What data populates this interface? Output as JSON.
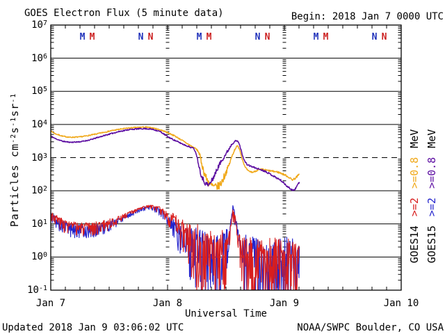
{
  "header": {
    "title": "GOES Electron Flux (5 minute data)",
    "begin": "Begin: 2018 Jan 7 0000 UTC"
  },
  "footer": {
    "updated": "Updated 2018 Jan  9 03:06:02 UTC",
    "credit": "NOAA/SWPC Boulder, CO USA"
  },
  "chart_data": {
    "type": "line",
    "title": "GOES Electron Flux (5 minute data)",
    "subtitle": "Begin: 2018 Jan 7 0000 UTC",
    "x_axis": {
      "label": "Universal Time",
      "range_hours": [
        0,
        72
      ],
      "tick_every_hours": 3,
      "major_every_hours": 24,
      "day_labels": [
        {
          "t": 0,
          "label": "Jan 7"
        },
        {
          "t": 24,
          "label": "Jan 8"
        },
        {
          "t": 48,
          "label": "Jan 9"
        },
        {
          "t": 72,
          "label": "Jan 10"
        }
      ]
    },
    "y_axis": {
      "label_parts": [
        {
          "text": "Particles cm"
        },
        {
          "sup": "-2"
        },
        {
          "text": "s"
        },
        {
          "sup": "-1"
        },
        {
          "text": "sr"
        },
        {
          "sup": "-1"
        }
      ],
      "log_min": -1,
      "log_max": 7,
      "tick_exponents": [
        7,
        6,
        5,
        4,
        3,
        2,
        1,
        0,
        -1
      ]
    },
    "threshold": {
      "value": 1000,
      "style": "dashed"
    },
    "day_boundary_lines_hours": [
      24,
      48
    ],
    "satellite_markers": {
      "midnight_letter": "M",
      "noon_letter": "N",
      "midnight_times_utc_hours": [
        6.5,
        8.5
      ],
      "noon_times_utc_hours": [
        18.5,
        20.5
      ],
      "letter_colors": [
        "#2233bb",
        "#cc2222"
      ],
      "repeat_days": 3,
      "baseline_y": 57
    },
    "series": [
      {
        "name": "GOES14 >=0.8 MeV",
        "satellite": "GOES14",
        "energy": ">=0.8 MeV",
        "color": "#f0a818",
        "width": 1.5,
        "noise_asym": [
          1,
          1
        ],
        "anchors": [
          [
            0,
            6300
          ],
          [
            1,
            5200
          ],
          [
            2.5,
            4400
          ],
          [
            4,
            4100
          ],
          [
            6,
            4200
          ],
          [
            8,
            4700
          ],
          [
            10,
            5400
          ],
          [
            12,
            6300
          ],
          [
            14,
            7100
          ],
          [
            16,
            7800
          ],
          [
            18,
            8200
          ],
          [
            19.5,
            8300
          ],
          [
            21,
            7800
          ],
          [
            22.5,
            6900
          ],
          [
            24,
            5700
          ],
          [
            25.5,
            4500
          ],
          [
            27,
            3300
          ],
          [
            28.5,
            2400
          ],
          [
            29.8,
            1850
          ],
          [
            30.4,
            1500
          ],
          [
            30.9,
            800
          ],
          [
            31.4,
            400
          ],
          [
            32,
            230
          ],
          [
            32.8,
            150
          ],
          [
            33.6,
            130
          ],
          [
            34.4,
            135
          ],
          [
            35,
            170
          ],
          [
            35.6,
            260
          ],
          [
            36.2,
            420
          ],
          [
            36.8,
            700
          ],
          [
            37.4,
            1300
          ],
          [
            38,
            2000
          ],
          [
            38.4,
            2250
          ],
          [
            38.8,
            1800
          ],
          [
            39.3,
            950
          ],
          [
            39.9,
            520
          ],
          [
            40.6,
            390
          ],
          [
            41.5,
            360
          ],
          [
            42.5,
            420
          ],
          [
            43.5,
            440
          ],
          [
            44.5,
            410
          ],
          [
            45.5,
            390
          ],
          [
            46.5,
            370
          ],
          [
            47.5,
            330
          ],
          [
            48.3,
            290
          ],
          [
            49,
            250
          ],
          [
            49.6,
            215
          ],
          [
            50.2,
            235
          ],
          [
            50.7,
            280
          ],
          [
            51.1,
            310
          ]
        ],
        "noise": [
          [
            0,
            0.015
          ],
          [
            30,
            0.02
          ],
          [
            31,
            0.1
          ],
          [
            33,
            0.12
          ],
          [
            35.5,
            0.12
          ],
          [
            36.5,
            0.06
          ],
          [
            38.5,
            0.02
          ],
          [
            51.1,
            0.03
          ]
        ]
      },
      {
        "name": "GOES15 >=0.8 MeV",
        "satellite": "GOES15",
        "energy": ">=0.8 MeV",
        "color": "#5a0aa0",
        "width": 1.5,
        "noise_asym": [
          1,
          1
        ],
        "anchors": [
          [
            0,
            4500
          ],
          [
            1,
            3700
          ],
          [
            2.5,
            3100
          ],
          [
            4,
            2900
          ],
          [
            6,
            3000
          ],
          [
            8,
            3400
          ],
          [
            10,
            4200
          ],
          [
            12,
            5100
          ],
          [
            14,
            6100
          ],
          [
            16,
            7000
          ],
          [
            18,
            7400
          ],
          [
            19.5,
            7500
          ],
          [
            21,
            7100
          ],
          [
            22.5,
            6100
          ],
          [
            24,
            4300
          ],
          [
            25.5,
            3300
          ],
          [
            27,
            2600
          ],
          [
            28.5,
            2100
          ],
          [
            29.4,
            1900
          ],
          [
            29.9,
            1300
          ],
          [
            30.4,
            600
          ],
          [
            30.9,
            300
          ],
          [
            31.6,
            180
          ],
          [
            32.4,
            145
          ],
          [
            33,
            190
          ],
          [
            33.8,
            330
          ],
          [
            34.6,
            600
          ],
          [
            35.4,
            950
          ],
          [
            36,
            1300
          ],
          [
            36.6,
            1800
          ],
          [
            37.2,
            2600
          ],
          [
            37.8,
            3100
          ],
          [
            38.3,
            3200
          ],
          [
            38.7,
            2700
          ],
          [
            39.2,
            1500
          ],
          [
            39.7,
            850
          ],
          [
            40.3,
            620
          ],
          [
            41.2,
            540
          ],
          [
            42.2,
            480
          ],
          [
            43.2,
            430
          ],
          [
            44.2,
            380
          ],
          [
            45.2,
            310
          ],
          [
            46.2,
            255
          ],
          [
            47.2,
            210
          ],
          [
            48,
            165
          ],
          [
            48.8,
            128
          ],
          [
            49.5,
            108
          ],
          [
            50.1,
            104
          ],
          [
            50.6,
            140
          ],
          [
            51.1,
            190
          ]
        ],
        "noise": [
          [
            0,
            0.015
          ],
          [
            30,
            0.02
          ],
          [
            31,
            0.07
          ],
          [
            33,
            0.08
          ],
          [
            35.5,
            0.06
          ],
          [
            38.5,
            0.02
          ],
          [
            51.1,
            0.03
          ]
        ]
      },
      {
        "name": "GOES15 >=2 MeV",
        "satellite": "GOES15",
        "energy": ">=2 MeV",
        "color": "#2323cc",
        "width": 1.1,
        "noise_asym": [
          0.7,
          1.9
        ],
        "anchors": [
          [
            0,
            19
          ],
          [
            0.8,
            15
          ],
          [
            1.8,
            11
          ],
          [
            3,
            9
          ],
          [
            4.5,
            7.8
          ],
          [
            6,
            7.3
          ],
          [
            7.5,
            7
          ],
          [
            9,
            7.6
          ],
          [
            10.5,
            8.6
          ],
          [
            12,
            10.2
          ],
          [
            13.5,
            12.5
          ],
          [
            15,
            16
          ],
          [
            16.5,
            21
          ],
          [
            18,
            26
          ],
          [
            19.3,
            31
          ],
          [
            20.3,
            33
          ],
          [
            21.3,
            31
          ],
          [
            22.3,
            26
          ],
          [
            23.3,
            20
          ],
          [
            24.3,
            14
          ],
          [
            25.3,
            9.5
          ],
          [
            26.3,
            6.5
          ],
          [
            27.3,
            4.6
          ],
          [
            28.3,
            3.4
          ],
          [
            29.3,
            2.6
          ],
          [
            30.3,
            2.1
          ],
          [
            31.3,
            1.8
          ],
          [
            32.3,
            1.5
          ],
          [
            33.3,
            1.4
          ],
          [
            34.3,
            1.4
          ],
          [
            35.3,
            1.6
          ],
          [
            36.1,
            2.2
          ],
          [
            36.7,
            5
          ],
          [
            37.1,
            16
          ],
          [
            37.4,
            32
          ],
          [
            37.8,
            20
          ],
          [
            38.1,
            11
          ],
          [
            38.5,
            5
          ],
          [
            39,
            2.4
          ],
          [
            39.6,
            1.4
          ],
          [
            40.5,
            1.1
          ],
          [
            42,
            1
          ],
          [
            44,
            0.95
          ],
          [
            46,
            1
          ],
          [
            48,
            0.95
          ],
          [
            50,
            1
          ],
          [
            51.1,
            0.95
          ]
        ],
        "noise": [
          [
            0,
            0.12
          ],
          [
            3,
            0.16
          ],
          [
            8,
            0.17
          ],
          [
            12,
            0.13
          ],
          [
            15,
            0.06
          ],
          [
            20,
            0.04
          ],
          [
            23,
            0.1
          ],
          [
            25,
            0.25
          ],
          [
            27,
            0.4
          ],
          [
            28.5,
            0.6
          ],
          [
            30,
            0.8
          ],
          [
            36,
            0.8
          ],
          [
            36.7,
            0.2
          ],
          [
            38.2,
            0.15
          ],
          [
            38.8,
            0.4
          ],
          [
            39.6,
            0.85
          ],
          [
            51.1,
            0.9
          ]
        ]
      },
      {
        "name": "GOES14 >=2 MeV",
        "satellite": "GOES14",
        "energy": ">=2 MeV",
        "color": "#d81e1e",
        "width": 1.1,
        "noise_asym": [
          0.7,
          1.9
        ],
        "anchors": [
          [
            0,
            21
          ],
          [
            0.8,
            17
          ],
          [
            1.8,
            13
          ],
          [
            3,
            10.5
          ],
          [
            4.5,
            9
          ],
          [
            6,
            8.5
          ],
          [
            7.5,
            8.2
          ],
          [
            9,
            8.8
          ],
          [
            10.5,
            9.8
          ],
          [
            12,
            11.5
          ],
          [
            13.5,
            14
          ],
          [
            15,
            18
          ],
          [
            16.5,
            23
          ],
          [
            18,
            28
          ],
          [
            19.3,
            33
          ],
          [
            20.3,
            35
          ],
          [
            21.3,
            33
          ],
          [
            22.3,
            29
          ],
          [
            23.3,
            24
          ],
          [
            24.3,
            18
          ],
          [
            25.3,
            13
          ],
          [
            26.3,
            9.5
          ],
          [
            27.3,
            7
          ],
          [
            28.3,
            5
          ],
          [
            29.3,
            3.8
          ],
          [
            30.3,
            2.9
          ],
          [
            31.3,
            2.3
          ],
          [
            32.3,
            1.9
          ],
          [
            33.3,
            1.7
          ],
          [
            34.3,
            1.6
          ],
          [
            35.3,
            1.8
          ],
          [
            36.1,
            2.4
          ],
          [
            36.7,
            4.5
          ],
          [
            37.1,
            12
          ],
          [
            37.4,
            22
          ],
          [
            37.8,
            16
          ],
          [
            38.1,
            9
          ],
          [
            38.5,
            4.5
          ],
          [
            39,
            2.2
          ],
          [
            39.6,
            1.3
          ],
          [
            40.5,
            1
          ],
          [
            42,
            0.95
          ],
          [
            44,
            0.9
          ],
          [
            46,
            0.95
          ],
          [
            48,
            0.9
          ],
          [
            50,
            0.95
          ],
          [
            51.1,
            0.9
          ]
        ],
        "noise": [
          [
            0,
            0.12
          ],
          [
            3,
            0.16
          ],
          [
            8,
            0.17
          ],
          [
            12,
            0.13
          ],
          [
            15,
            0.06
          ],
          [
            20,
            0.04
          ],
          [
            23,
            0.1
          ],
          [
            25,
            0.25
          ],
          [
            27,
            0.4
          ],
          [
            28.5,
            0.6
          ],
          [
            30,
            0.8
          ],
          [
            36,
            0.8
          ],
          [
            36.7,
            0.2
          ],
          [
            38.2,
            0.15
          ],
          [
            38.8,
            0.4
          ],
          [
            39.6,
            0.85
          ],
          [
            51.1,
            0.9
          ]
        ]
      }
    ],
    "legend": {
      "columns": [
        {
          "satellite": "GOES14",
          "e2_label": ">=2",
          "e08_label": ">=0.8",
          "unit": "MeV",
          "e2_color": "#d81e1e",
          "e08_color": "#f0a818"
        },
        {
          "satellite": "GOES15",
          "e2_label": ">=2",
          "e08_label": ">=0.8",
          "unit": "MeV",
          "e2_color": "#2323cc",
          "e08_color": "#5a0aa0"
        }
      ]
    }
  }
}
